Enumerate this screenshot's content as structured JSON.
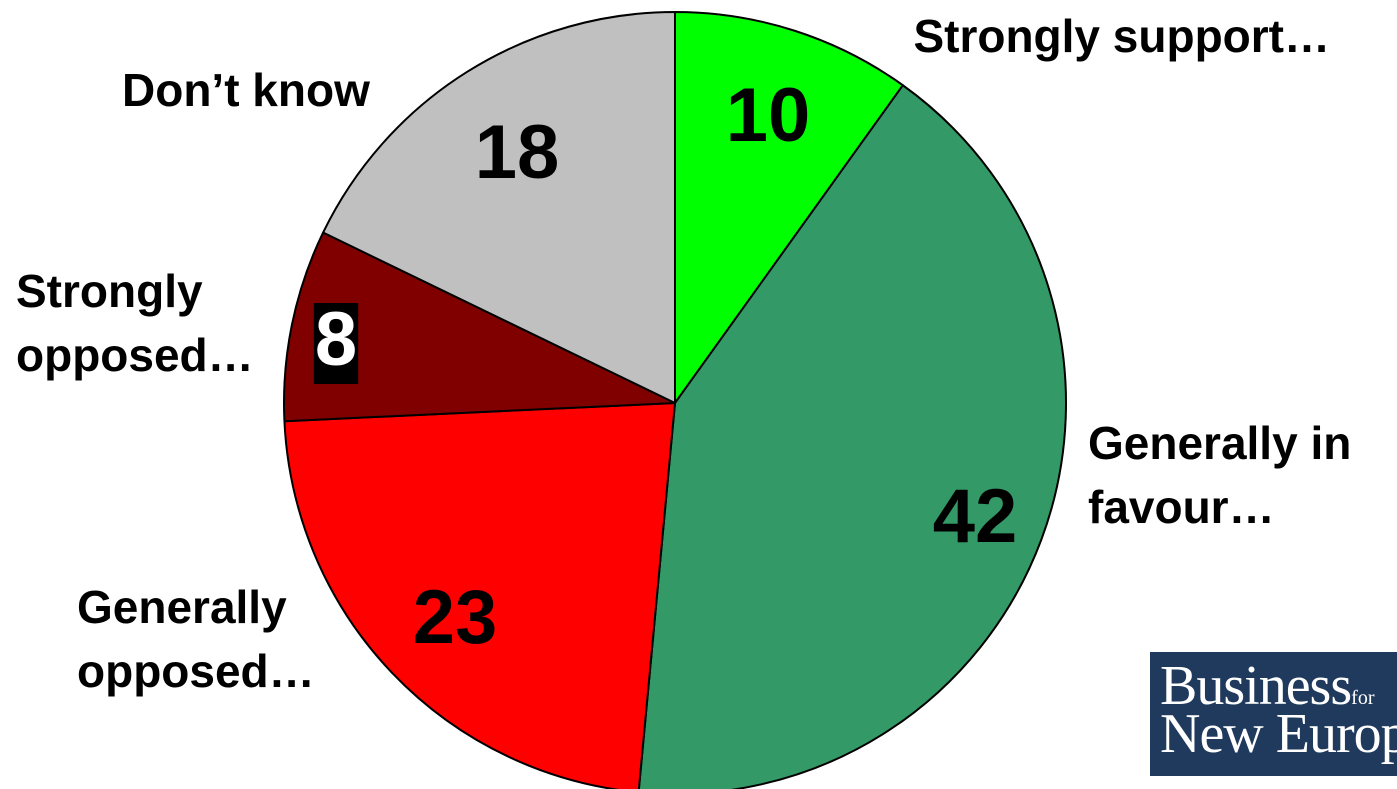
{
  "chart_data": {
    "type": "pie",
    "title": "",
    "slices": [
      {
        "label": [
          "Strongly support…"
        ],
        "value": 10,
        "color": "#00ff00",
        "value_text_color": "#000000",
        "value_box": ""
      },
      {
        "label": [
          "Generally in",
          "favour…"
        ],
        "value": 42,
        "color": "#339966",
        "value_text_color": "#000000",
        "value_box": ""
      },
      {
        "label": [
          "Generally",
          "opposed…"
        ],
        "value": 23,
        "color": "#ff0000",
        "value_text_color": "#000000",
        "value_box": ""
      },
      {
        "label": [
          "Strongly",
          "opposed…"
        ],
        "value": 8,
        "color": "#800000",
        "value_text_color": "#ffffff",
        "value_box": "#000000"
      },
      {
        "label": [
          "Don’t know"
        ],
        "value": 18,
        "color": "#c0c0c0",
        "value_text_color": "#000000",
        "value_box": ""
      }
    ],
    "start_angle": "12 o'clock",
    "direction": "clockwise",
    "outline_color": "#000000"
  },
  "logo": {
    "line1_big": "Business",
    "line1_small": "for",
    "line2": "New Europe",
    "background": "#203a5e"
  }
}
